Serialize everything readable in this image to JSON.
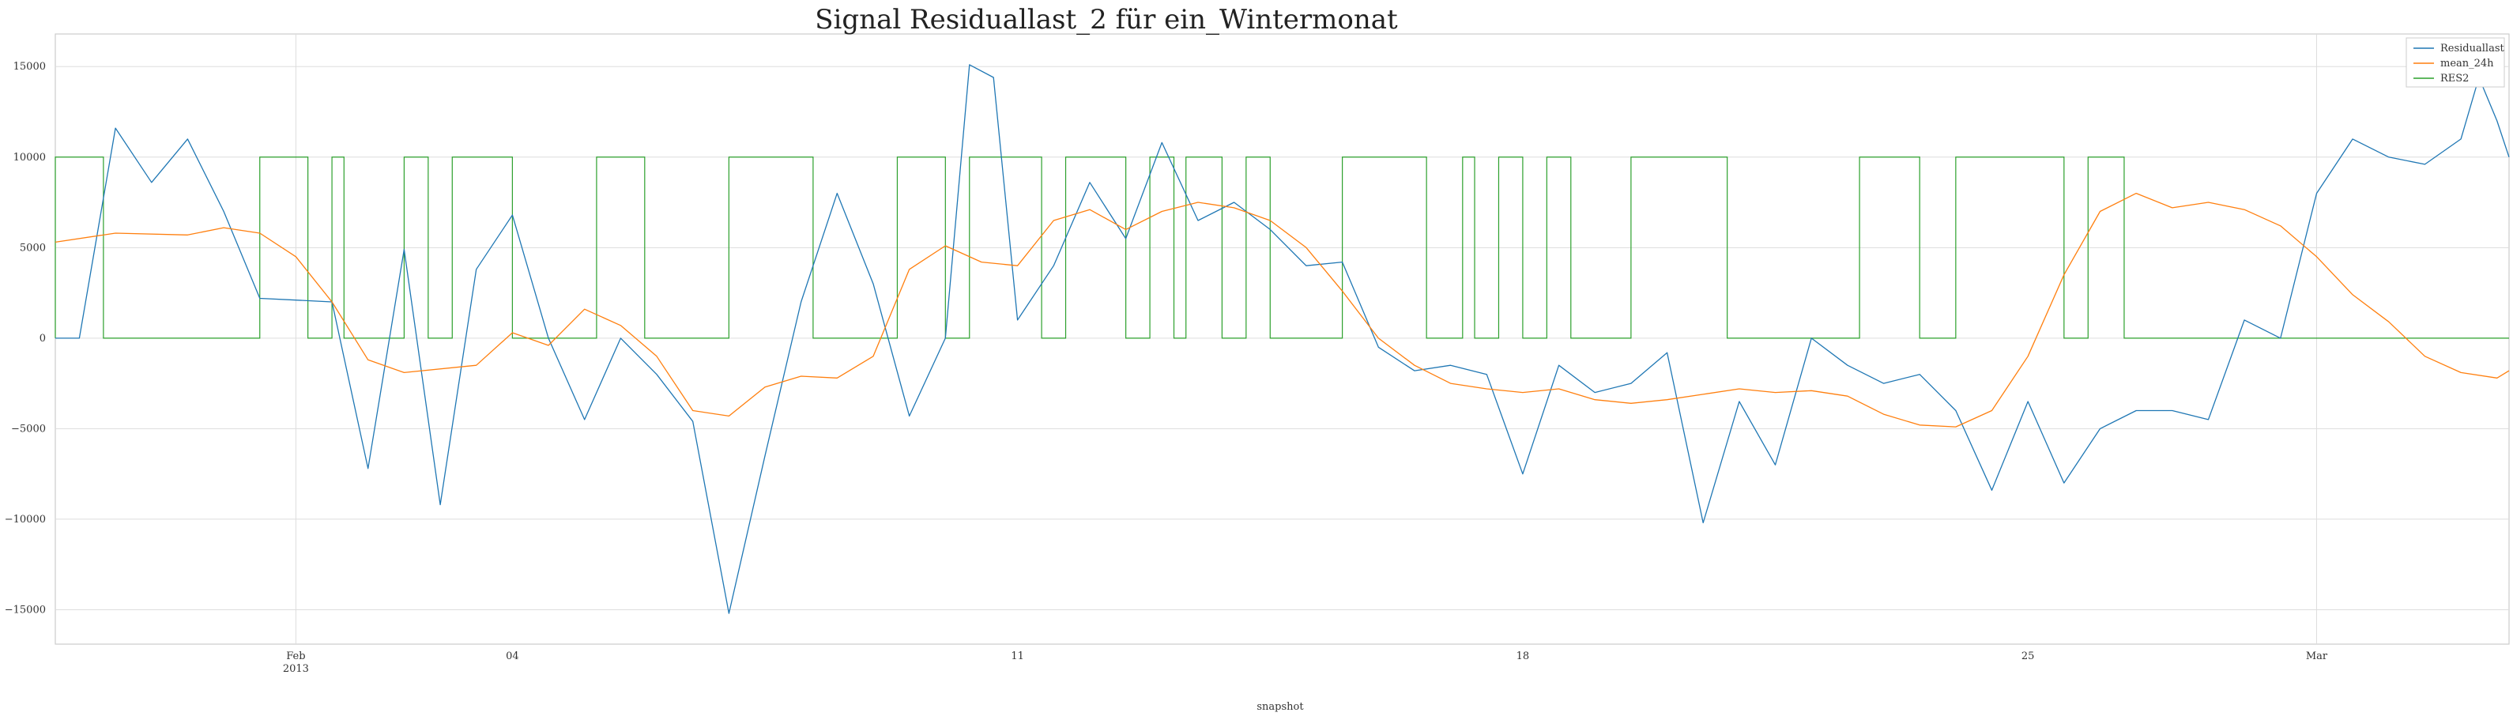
{
  "chart_data": {
    "type": "line",
    "title": "Signal Residuallast_2 für ein_Wintermonat",
    "xlabel": "snapshot",
    "ylabel": "",
    "ylim": [
      -16900,
      16800
    ],
    "yticks": [
      15000,
      10000,
      5000,
      0,
      -5000,
      -10000,
      -15000
    ],
    "yticklabels": [
      "15000",
      "10000",
      "5000",
      "0",
      "−5000",
      "−10000",
      "−15000"
    ],
    "xlim": [
      "2013-01-28T16:00",
      "2013-03-03T16:00"
    ],
    "xticks": [
      {
        "date": "2013-02-01",
        "label": "Feb",
        "sublabel": "2013"
      },
      {
        "date": "2013-02-04",
        "label": "04",
        "sublabel": ""
      },
      {
        "date": "2013-02-11",
        "label": "11",
        "sublabel": ""
      },
      {
        "date": "2013-02-18",
        "label": "18",
        "sublabel": ""
      },
      {
        "date": "2013-02-25",
        "label": "25",
        "sublabel": ""
      },
      {
        "date": "2013-03-01",
        "label": "Mar",
        "sublabel": ""
      }
    ],
    "grid": true,
    "legend_position": "top-right",
    "series": [
      {
        "name": "Residuallast",
        "color": "#1f77b4",
        "points": [
          [
            "2013-01-28T16:00",
            0
          ],
          [
            "2013-01-29T00:00",
            0
          ],
          [
            "2013-01-29T12:00",
            11600
          ],
          [
            "2013-01-30T00:00",
            8600
          ],
          [
            "2013-01-30T12:00",
            11000
          ],
          [
            "2013-01-31T00:00",
            7000
          ],
          [
            "2013-01-31T12:00",
            2200
          ],
          [
            "2013-02-01T00:00",
            2100
          ],
          [
            "2013-02-01T12:00",
            2000
          ],
          [
            "2013-02-02T00:00",
            -7200
          ],
          [
            "2013-02-02T12:00",
            4900
          ],
          [
            "2013-02-03T00:00",
            -9200
          ],
          [
            "2013-02-03T12:00",
            3800
          ],
          [
            "2013-02-04T00:00",
            6800
          ],
          [
            "2013-02-04T12:00",
            0
          ],
          [
            "2013-02-05T00:00",
            -4500
          ],
          [
            "2013-02-05T12:00",
            0
          ],
          [
            "2013-02-06T00:00",
            -2000
          ],
          [
            "2013-02-06T12:00",
            -4600
          ],
          [
            "2013-02-07T00:00",
            -15200
          ],
          [
            "2013-02-07T12:00",
            -6500
          ],
          [
            "2013-02-08T00:00",
            2000
          ],
          [
            "2013-02-08T12:00",
            8000
          ],
          [
            "2013-02-09T00:00",
            3000
          ],
          [
            "2013-02-09T12:00",
            -4300
          ],
          [
            "2013-02-10T00:00",
            0
          ],
          [
            "2013-02-10T08:00",
            15100
          ],
          [
            "2013-02-10T16:00",
            14400
          ],
          [
            "2013-02-11T00:00",
            1000
          ],
          [
            "2013-02-11T12:00",
            4000
          ],
          [
            "2013-02-12T00:00",
            8600
          ],
          [
            "2013-02-12T12:00",
            5500
          ],
          [
            "2013-02-13T00:00",
            10800
          ],
          [
            "2013-02-13T12:00",
            6500
          ],
          [
            "2013-02-14T00:00",
            7500
          ],
          [
            "2013-02-14T12:00",
            6000
          ],
          [
            "2013-02-15T00:00",
            4000
          ],
          [
            "2013-02-15T12:00",
            4200
          ],
          [
            "2013-02-16T00:00",
            -500
          ],
          [
            "2013-02-16T12:00",
            -1800
          ],
          [
            "2013-02-17T00:00",
            -1500
          ],
          [
            "2013-02-17T12:00",
            -2000
          ],
          [
            "2013-02-18T00:00",
            -7500
          ],
          [
            "2013-02-18T12:00",
            -1500
          ],
          [
            "2013-02-19T00:00",
            -3000
          ],
          [
            "2013-02-19T12:00",
            -2500
          ],
          [
            "2013-02-20T00:00",
            -800
          ],
          [
            "2013-02-20T12:00",
            -10200
          ],
          [
            "2013-02-21T00:00",
            -3500
          ],
          [
            "2013-02-21T12:00",
            -7000
          ],
          [
            "2013-02-22T00:00",
            0
          ],
          [
            "2013-02-22T12:00",
            -1500
          ],
          [
            "2013-02-23T00:00",
            -2500
          ],
          [
            "2013-02-23T12:00",
            -2000
          ],
          [
            "2013-02-24T00:00",
            -4000
          ],
          [
            "2013-02-24T12:00",
            -8400
          ],
          [
            "2013-02-25T00:00",
            -3500
          ],
          [
            "2013-02-25T12:00",
            -8000
          ],
          [
            "2013-02-26T00:00",
            -5000
          ],
          [
            "2013-02-26T12:00",
            -4000
          ],
          [
            "2013-02-27T00:00",
            -4000
          ],
          [
            "2013-02-27T12:00",
            -4500
          ],
          [
            "2013-02-28T00:00",
            1000
          ],
          [
            "2013-02-28T12:00",
            0
          ],
          [
            "2013-03-01T00:00",
            8000
          ],
          [
            "2013-03-01T12:00",
            11000
          ],
          [
            "2013-03-02T00:00",
            10000
          ],
          [
            "2013-03-02T12:00",
            9600
          ],
          [
            "2013-03-03T00:00",
            11000
          ],
          [
            "2013-03-03T06:00",
            14400
          ],
          [
            "2013-03-03T12:00",
            12000
          ],
          [
            "2013-03-03T16:00",
            10000
          ]
        ]
      },
      {
        "name": "mean_24h",
        "color": "#ff7f0e",
        "points": [
          [
            "2013-01-28T16:00",
            5300
          ],
          [
            "2013-01-29T12:00",
            5800
          ],
          [
            "2013-01-30T12:00",
            5700
          ],
          [
            "2013-01-31T00:00",
            6100
          ],
          [
            "2013-01-31T12:00",
            5800
          ],
          [
            "2013-02-01T00:00",
            4500
          ],
          [
            "2013-02-01T12:00",
            2000
          ],
          [
            "2013-02-02T00:00",
            -1200
          ],
          [
            "2013-02-02T12:00",
            -1900
          ],
          [
            "2013-02-03T12:00",
            -1500
          ],
          [
            "2013-02-04T00:00",
            300
          ],
          [
            "2013-02-04T12:00",
            -400
          ],
          [
            "2013-02-05T00:00",
            1600
          ],
          [
            "2013-02-05T12:00",
            700
          ],
          [
            "2013-02-06T00:00",
            -1000
          ],
          [
            "2013-02-06T12:00",
            -4000
          ],
          [
            "2013-02-07T00:00",
            -4300
          ],
          [
            "2013-02-07T12:00",
            -2700
          ],
          [
            "2013-02-08T00:00",
            -2100
          ],
          [
            "2013-02-08T12:00",
            -2200
          ],
          [
            "2013-02-09T00:00",
            -1000
          ],
          [
            "2013-02-09T12:00",
            3800
          ],
          [
            "2013-02-10T00:00",
            5100
          ],
          [
            "2013-02-10T12:00",
            4200
          ],
          [
            "2013-02-11T00:00",
            4000
          ],
          [
            "2013-02-11T12:00",
            6500
          ],
          [
            "2013-02-12T00:00",
            7100
          ],
          [
            "2013-02-12T12:00",
            6000
          ],
          [
            "2013-02-13T00:00",
            7000
          ],
          [
            "2013-02-13T12:00",
            7500
          ],
          [
            "2013-02-14T00:00",
            7200
          ],
          [
            "2013-02-14T12:00",
            6500
          ],
          [
            "2013-02-15T00:00",
            5000
          ],
          [
            "2013-02-15T12:00",
            2600
          ],
          [
            "2013-02-16T00:00",
            0
          ],
          [
            "2013-02-16T12:00",
            -1500
          ],
          [
            "2013-02-17T00:00",
            -2500
          ],
          [
            "2013-02-17T12:00",
            -2800
          ],
          [
            "2013-02-18T00:00",
            -3000
          ],
          [
            "2013-02-18T12:00",
            -2800
          ],
          [
            "2013-02-19T00:00",
            -3400
          ],
          [
            "2013-02-19T12:00",
            -3600
          ],
          [
            "2013-02-20T00:00",
            -3400
          ],
          [
            "2013-02-20T12:00",
            -3100
          ],
          [
            "2013-02-21T00:00",
            -2800
          ],
          [
            "2013-02-21T12:00",
            -3000
          ],
          [
            "2013-02-22T00:00",
            -2900
          ],
          [
            "2013-02-22T12:00",
            -3200
          ],
          [
            "2013-02-23T00:00",
            -4200
          ],
          [
            "2013-02-23T12:00",
            -4800
          ],
          [
            "2013-02-24T00:00",
            -4900
          ],
          [
            "2013-02-24T12:00",
            -4000
          ],
          [
            "2013-02-25T00:00",
            -1000
          ],
          [
            "2013-02-25T12:00",
            3500
          ],
          [
            "2013-02-26T00:00",
            7000
          ],
          [
            "2013-02-26T12:00",
            8000
          ],
          [
            "2013-02-27T00:00",
            7200
          ],
          [
            "2013-02-27T12:00",
            7500
          ],
          [
            "2013-02-28T00:00",
            7100
          ],
          [
            "2013-02-28T12:00",
            6200
          ],
          [
            "2013-03-01T00:00",
            4500
          ],
          [
            "2013-03-01T12:00",
            2400
          ],
          [
            "2013-03-02T00:00",
            900
          ],
          [
            "2013-03-02T12:00",
            -1000
          ],
          [
            "2013-03-03T00:00",
            -1900
          ],
          [
            "2013-03-03T12:00",
            -2200
          ],
          [
            "2013-03-03T16:00",
            -1800
          ]
        ]
      },
      {
        "name": "RES2",
        "color": "#2ca02c",
        "step": true,
        "levels": [
          0,
          10000
        ],
        "intervals_at_high": [
          [
            "2013-01-28T16:00",
            "2013-01-29T08:00"
          ],
          [
            "2013-01-31T12:00",
            "2013-02-01T04:00"
          ],
          [
            "2013-02-01T12:00",
            "2013-02-01T16:00"
          ],
          [
            "2013-02-02T12:00",
            "2013-02-02T20:00"
          ],
          [
            "2013-02-03T04:00",
            "2013-02-04T00:00"
          ],
          [
            "2013-02-05T04:00",
            "2013-02-05T20:00"
          ],
          [
            "2013-02-07T00:00",
            "2013-02-08T04:00"
          ],
          [
            "2013-02-09T08:00",
            "2013-02-10T00:00"
          ],
          [
            "2013-02-10T08:00",
            "2013-02-11T08:00"
          ],
          [
            "2013-02-11T16:00",
            "2013-02-12T12:00"
          ],
          [
            "2013-02-12T20:00",
            "2013-02-13T04:00"
          ],
          [
            "2013-02-13T08:00",
            "2013-02-13T20:00"
          ],
          [
            "2013-02-14T04:00",
            "2013-02-14T12:00"
          ],
          [
            "2013-02-15T12:00",
            "2013-02-16T16:00"
          ],
          [
            "2013-02-17T04:00",
            "2013-02-17T08:00"
          ],
          [
            "2013-02-17T16:00",
            "2013-02-18T00:00"
          ],
          [
            "2013-02-18T08:00",
            "2013-02-18T16:00"
          ],
          [
            "2013-02-19T12:00",
            "2013-02-20T20:00"
          ],
          [
            "2013-02-22T16:00",
            "2013-02-23T12:00"
          ],
          [
            "2013-02-24T00:00",
            "2013-02-25T12:00"
          ],
          [
            "2013-02-25T20:00",
            "2013-02-26T08:00"
          ]
        ]
      }
    ]
  }
}
